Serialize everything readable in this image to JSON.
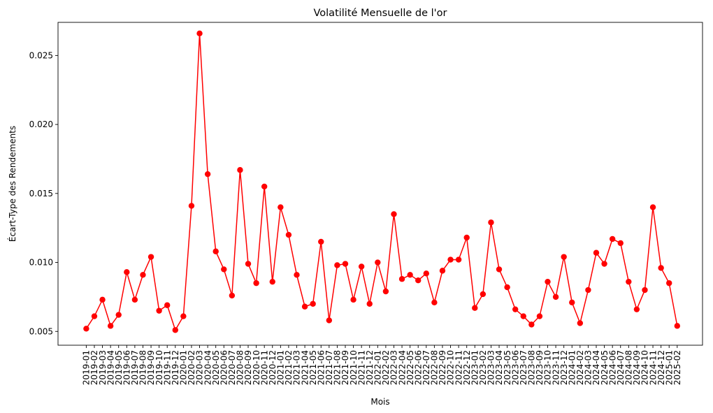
{
  "chart_data": {
    "type": "line",
    "title": "Volatilité Mensuelle de l'or",
    "xlabel": "Mois",
    "ylabel": "Écart-Type des Rendements",
    "ylim": [
      0.004,
      0.0274
    ],
    "yticks": [
      0.005,
      0.01,
      0.015,
      0.02,
      0.025
    ],
    "ytick_labels": [
      "0.005",
      "0.010",
      "0.015",
      "0.020",
      "0.025"
    ],
    "grid": false,
    "marker": "circle",
    "color": "#ff0000",
    "categories": [
      "2019-01",
      "2019-02",
      "2019-03",
      "2019-04",
      "2019-05",
      "2019-06",
      "2019-07",
      "2019-08",
      "2019-09",
      "2019-10",
      "2019-11",
      "2019-12",
      "2020-01",
      "2020-02",
      "2020-03",
      "2020-04",
      "2020-05",
      "2020-06",
      "2020-07",
      "2020-08",
      "2020-09",
      "2020-10",
      "2020-11",
      "2020-12",
      "2021-01",
      "2021-02",
      "2021-03",
      "2021-04",
      "2021-05",
      "2021-06",
      "2021-07",
      "2021-08",
      "2021-09",
      "2021-10",
      "2021-11",
      "2021-12",
      "2022-01",
      "2022-02",
      "2022-03",
      "2022-04",
      "2022-05",
      "2022-06",
      "2022-07",
      "2022-08",
      "2022-09",
      "2022-10",
      "2022-11",
      "2022-12",
      "2023-01",
      "2023-02",
      "2023-03",
      "2023-04",
      "2023-05",
      "2023-06",
      "2023-07",
      "2023-08",
      "2023-09",
      "2023-10",
      "2023-11",
      "2023-12",
      "2024-01",
      "2024-02",
      "2024-03",
      "2024-04",
      "2024-05",
      "2024-06",
      "2024-07",
      "2024-08",
      "2024-09",
      "2024-10",
      "2024-11",
      "2024-12",
      "2025-01",
      "2025-02"
    ],
    "values": [
      0.0052,
      0.0061,
      0.0073,
      0.0054,
      0.0062,
      0.0093,
      0.0073,
      0.0091,
      0.0104,
      0.0065,
      0.0069,
      0.0051,
      0.0061,
      0.0141,
      0.0266,
      0.0164,
      0.0108,
      0.0095,
      0.0076,
      0.0167,
      0.0099,
      0.0085,
      0.0155,
      0.0086,
      0.014,
      0.012,
      0.0091,
      0.0068,
      0.007,
      0.0115,
      0.0058,
      0.0098,
      0.0099,
      0.0073,
      0.0097,
      0.007,
      0.01,
      0.0079,
      0.0135,
      0.0088,
      0.0091,
      0.0087,
      0.0092,
      0.0071,
      0.0094,
      0.0102,
      0.0102,
      0.0118,
      0.0067,
      0.0077,
      0.0129,
      0.0095,
      0.0082,
      0.0066,
      0.0061,
      0.0055,
      0.0061,
      0.0086,
      0.0075,
      0.0104,
      0.0071,
      0.0056,
      0.008,
      0.0107,
      0.0099,
      0.0117,
      0.0114,
      0.0086,
      0.0066,
      0.008,
      0.014,
      0.0096,
      0.0085,
      0.0054
    ]
  }
}
